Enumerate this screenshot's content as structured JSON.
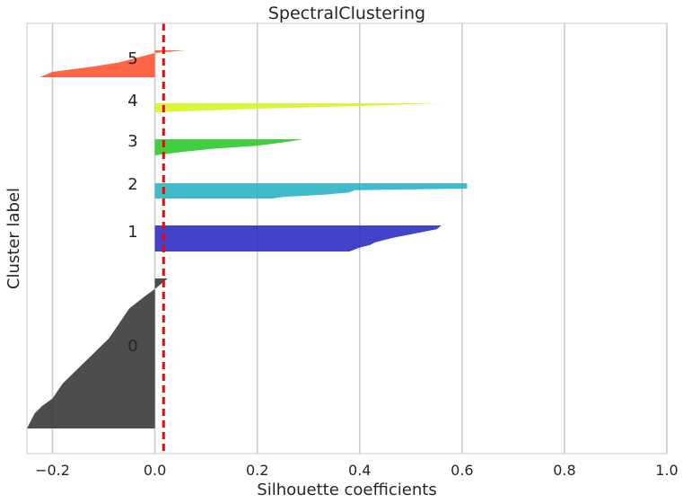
{
  "chart_data": {
    "type": "silhouette",
    "title": "SpectralClustering",
    "xlabel": "Silhouette coefficients",
    "ylabel": "Cluster label",
    "xlim": [
      -0.25,
      1.0
    ],
    "xticks": [
      -0.2,
      0.0,
      0.2,
      0.4,
      0.6,
      0.8,
      1.0
    ],
    "xtick_labels": [
      "−0.2",
      "0.0",
      "0.2",
      "0.4",
      "0.6",
      "0.8",
      "1.0"
    ],
    "grid": true,
    "average_silhouette": 0.017,
    "average_line_color": "#ff0000",
    "clusters": [
      {
        "label": "0",
        "color": "#3a3a3a",
        "profile": [
          [
            0.0,
            0.025
          ],
          [
            0.07,
            0.0
          ],
          [
            0.12,
            -0.02
          ],
          [
            0.2,
            -0.05
          ],
          [
            0.3,
            -0.07
          ],
          [
            0.4,
            -0.09
          ],
          [
            0.5,
            -0.12
          ],
          [
            0.6,
            -0.15
          ],
          [
            0.7,
            -0.18
          ],
          [
            0.8,
            -0.2
          ],
          [
            0.85,
            -0.22
          ],
          [
            0.9,
            -0.235
          ],
          [
            1.0,
            -0.25
          ]
        ]
      },
      {
        "label": "1",
        "color": "#2e2ec4",
        "profile": [
          [
            0.0,
            0.56
          ],
          [
            0.15,
            0.55
          ],
          [
            0.3,
            0.51
          ],
          [
            0.45,
            0.47
          ],
          [
            0.55,
            0.45
          ],
          [
            0.65,
            0.43
          ],
          [
            0.75,
            0.42
          ],
          [
            0.85,
            0.4
          ],
          [
            1.0,
            0.38
          ]
        ]
      },
      {
        "label": "2",
        "color": "#2ab4c4",
        "profile": [
          [
            0.0,
            0.61
          ],
          [
            0.35,
            0.61
          ],
          [
            0.45,
            0.39
          ],
          [
            0.6,
            0.38
          ],
          [
            0.75,
            0.33
          ],
          [
            0.9,
            0.25
          ],
          [
            1.0,
            0.23
          ]
        ]
      },
      {
        "label": "3",
        "color": "#2cc92c",
        "profile": [
          [
            0.0,
            0.29
          ],
          [
            0.2,
            0.25
          ],
          [
            0.4,
            0.2
          ],
          [
            0.6,
            0.11
          ],
          [
            0.8,
            0.05
          ],
          [
            1.0,
            0.0
          ]
        ]
      },
      {
        "label": "4",
        "color": "#d7f523",
        "profile": [
          [
            0.0,
            0.555
          ],
          [
            0.3,
            0.4
          ],
          [
            0.6,
            0.2
          ],
          [
            1.0,
            0.0
          ]
        ]
      },
      {
        "label": "5",
        "color": "#ff5533",
        "profile": [
          [
            0.0,
            0.06
          ],
          [
            0.1,
            0.0
          ],
          [
            0.45,
            -0.07
          ],
          [
            0.6,
            -0.12
          ],
          [
            0.8,
            -0.2
          ],
          [
            1.0,
            -0.225
          ]
        ]
      }
    ]
  }
}
